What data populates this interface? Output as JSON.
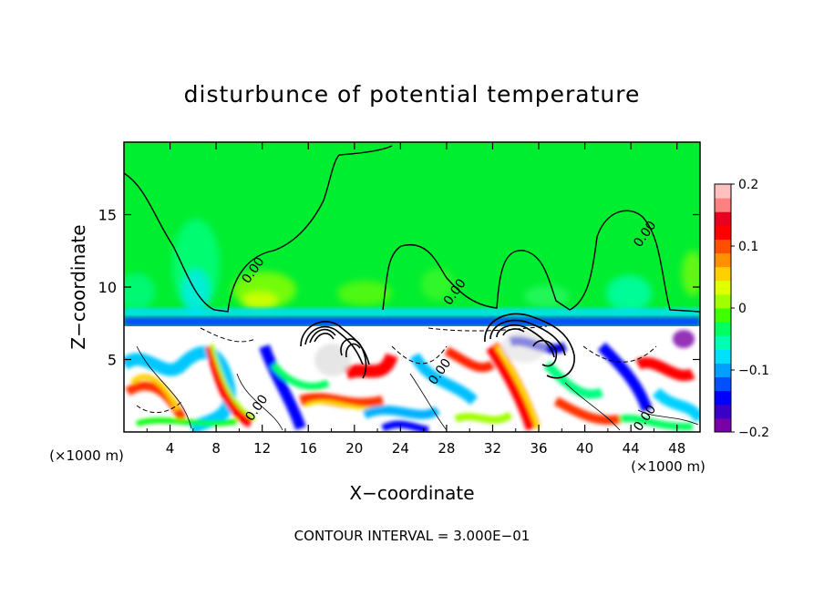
{
  "chart_data": {
    "type": "heatmap",
    "title": "disturbunce of potential temperature",
    "xlabel": "X−coordinate",
    "ylabel": "Z−coordinate",
    "x_unit_left": "(×1000 m)",
    "x_unit_right": "(×1000 m)",
    "footer": "CONTOUR INTERVAL = 3.000E−01",
    "xlim": [
      0,
      50
    ],
    "ylim": [
      0,
      20
    ],
    "x_ticks": [
      4,
      8,
      12,
      16,
      20,
      24,
      28,
      32,
      36,
      40,
      44,
      48
    ],
    "y_ticks": [
      5,
      10,
      15
    ],
    "colorbar": {
      "range": [
        -0.2,
        0.2
      ],
      "tick_values": [
        0.2,
        0.1,
        0,
        -0.1,
        -0.2
      ],
      "tick_labels": [
        "0.2",
        "0.1",
        "0",
        "−0.1",
        "−0.2"
      ],
      "colors": [
        "#7a00a8",
        "#3a00c8",
        "#0000ff",
        "#0050ff",
        "#00a0ff",
        "#00e0ff",
        "#00ffb0",
        "#00ff60",
        "#40ff00",
        "#a0ff00",
        "#e0ff00",
        "#ffd000",
        "#ff9000",
        "#ff5000",
        "#ff0000",
        "#e80020",
        "#ff8080",
        "#ffc0c0"
      ]
    },
    "contour_labels": [
      {
        "text": "0.00",
        "x": 11.5,
        "z": 11.0
      },
      {
        "text": "0.00",
        "x": 29.0,
        "z": 9.5
      },
      {
        "text": "0.00",
        "x": 45.5,
        "z": 13.5
      },
      {
        "text": "0.00",
        "x": 11.8,
        "z": 1.5
      },
      {
        "text": "0.00",
        "x": 27.7,
        "z": 4.0
      },
      {
        "text": "0.00",
        "x": 45.5,
        "z": 0.8
      }
    ],
    "grid": false
  }
}
